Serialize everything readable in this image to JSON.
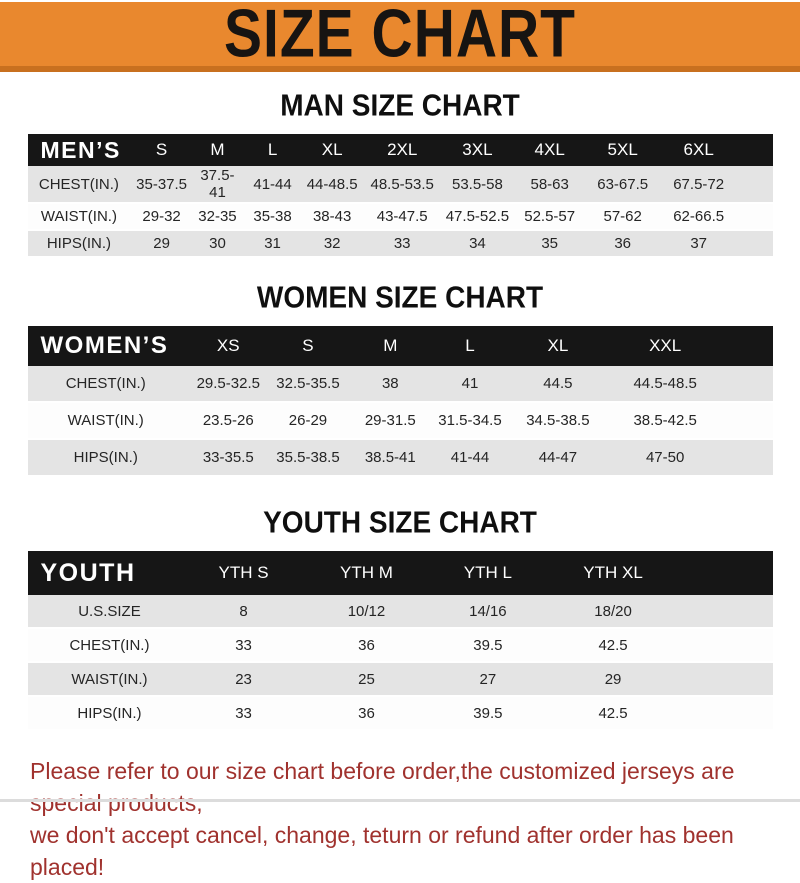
{
  "banner": {
    "title": "SIZE CHART",
    "bg_color": "#E9882E",
    "bg_dark_edge": "#C8701F",
    "text_color": "#171412"
  },
  "colors": {
    "header_bar": "#161616",
    "header_text": "#FFFFFF",
    "row_gray": "#E4E4E4",
    "row_white": "#FDFDFD",
    "footer_red": "#A0322E"
  },
  "chart_data": [
    {
      "type": "table",
      "title": "MAN SIZE CHART",
      "corner_label": "MEN’S",
      "columns": [
        "S",
        "M",
        "L",
        "XL",
        "2XL",
        "3XL",
        "4XL",
        "5XL",
        "6XL"
      ],
      "rows": [
        {
          "label": "CHEST(IN.)",
          "values": [
            "35-37.5",
            "37.5-41",
            "41-44",
            "44-48.5",
            "48.5-53.5",
            "53.5-58",
            "58-63",
            "63-67.5",
            "67.5-72"
          ]
        },
        {
          "label": "WAIST(IN.)",
          "values": [
            "29-32",
            "32-35",
            "35-38",
            "38-43",
            "43-47.5",
            "47.5-52.5",
            "52.5-57",
            "57-62",
            "62-66.5"
          ]
        },
        {
          "label": "HIPS(IN.)",
          "values": [
            "29",
            "30",
            "31",
            "32",
            "33",
            "34",
            "35",
            "36",
            "37"
          ]
        }
      ]
    },
    {
      "type": "table",
      "title": "WOMEN SIZE CHART",
      "corner_label": "WOMEN’S",
      "columns": [
        "XS",
        "S",
        "M",
        "L",
        "XL",
        "XXL"
      ],
      "rows": [
        {
          "label": "CHEST(IN.)",
          "values": [
            "29.5-32.5",
            "32.5-35.5",
            "38",
            "41",
            "44.5",
            "44.5-48.5"
          ]
        },
        {
          "label": "WAIST(IN.)",
          "values": [
            "23.5-26",
            "26-29",
            "29-31.5",
            "31.5-34.5",
            "34.5-38.5",
            "38.5-42.5"
          ]
        },
        {
          "label": "HIPS(IN.)",
          "values": [
            "33-35.5",
            "35.5-38.5",
            "38.5-41",
            "41-44",
            "44-47",
            "47-50"
          ]
        }
      ]
    },
    {
      "type": "table",
      "title": "YOUTH SIZE CHART",
      "corner_label": "YOUTH",
      "columns": [
        "YTH S",
        "YTH M",
        "YTH L",
        "YTH XL"
      ],
      "rows": [
        {
          "label": "U.S.SIZE",
          "values": [
            "8",
            "10/12",
            "14/16",
            "18/20"
          ]
        },
        {
          "label": "CHEST(IN.)",
          "values": [
            "33",
            "36",
            "39.5",
            "42.5"
          ]
        },
        {
          "label": "WAIST(IN.)",
          "values": [
            "23",
            "25",
            "27",
            "29"
          ]
        },
        {
          "label": "HIPS(IN.)",
          "values": [
            "33",
            "36",
            "39.5",
            "42.5"
          ]
        }
      ]
    }
  ],
  "footer": {
    "line1": "Please refer to our size chart before order,the customized jerseys are special products,",
    "line2": "we don't accept cancel, change, teturn or refund after order has been placed!"
  }
}
